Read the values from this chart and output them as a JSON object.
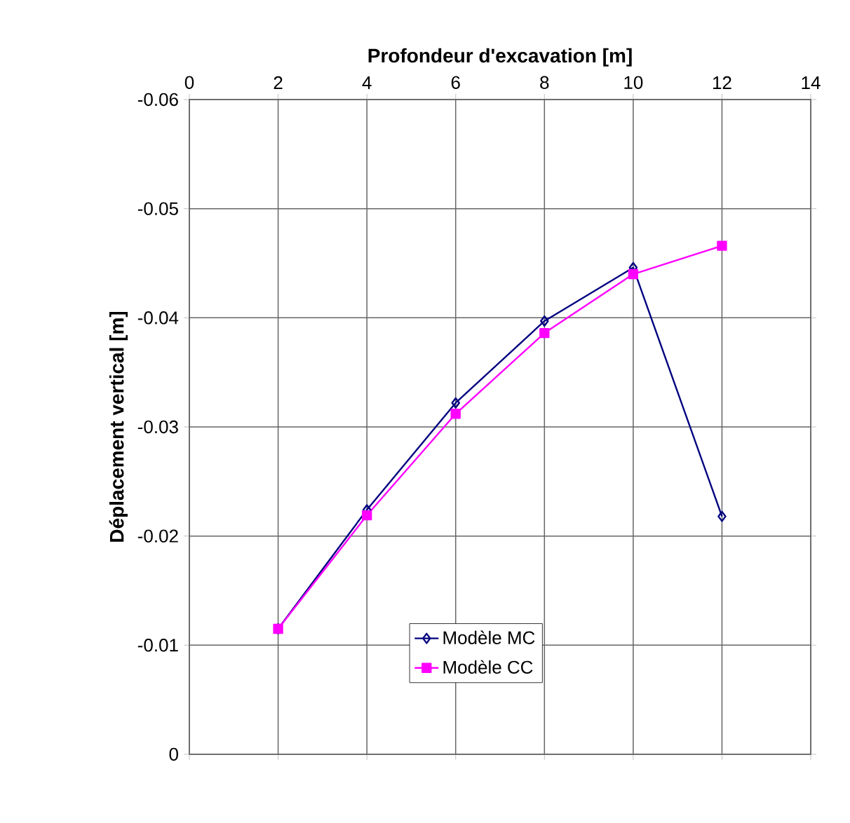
{
  "chart_data": {
    "type": "line",
    "xlabel": "Profondeur d'excavation [m]",
    "ylabel": "Déplacement vertical [m]",
    "x": [
      2,
      4,
      6,
      8,
      10,
      12
    ],
    "series": [
      {
        "name": "Modèle MC",
        "color": "#000080",
        "marker": "diamond",
        "values": [
          -0.0115,
          -0.0224,
          -0.0322,
          -0.0397,
          -0.0446,
          -0.0218
        ]
      },
      {
        "name": "Modèle CC",
        "color": "#ff00ff",
        "marker": "square",
        "values": [
          -0.0115,
          -0.0219,
          -0.0312,
          -0.0386,
          -0.044,
          -0.0466
        ]
      }
    ],
    "xlim": [
      0,
      14
    ],
    "xticks": [
      0,
      2,
      4,
      6,
      8,
      10,
      12,
      14
    ],
    "ylim": [
      0,
      -0.06
    ],
    "yticks": [
      0,
      -0.01,
      -0.02,
      -0.03,
      -0.04,
      -0.05,
      -0.06
    ],
    "grid": true,
    "legend": "bottom"
  }
}
